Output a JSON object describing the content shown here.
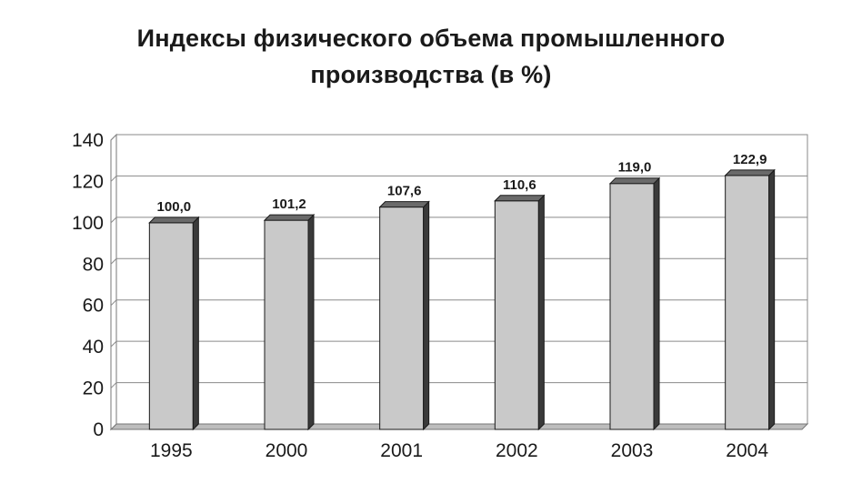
{
  "chart_data": {
    "type": "bar",
    "title_lines": [
      "Индексы физического объема промышленного",
      "производства (в %)"
    ],
    "categories": [
      "1995",
      "2000",
      "2001",
      "2002",
      "2003",
      "2004"
    ],
    "values": [
      100.0,
      101.2,
      107.6,
      110.6,
      119.0,
      122.9
    ],
    "value_labels": [
      "100,0",
      "101,2",
      "107,6",
      "110,6",
      "119,0",
      "122,9"
    ],
    "y_ticks": [
      "0",
      "20",
      "40",
      "60",
      "80",
      "100",
      "120",
      "140"
    ],
    "ylim": [
      0,
      140
    ],
    "grid": true,
    "legend": "none",
    "colors": {
      "bar_face": "#c9c9c9",
      "bar_side": "#3a3a3a",
      "bar_top": "#6a6a6a",
      "grid": "#8a8a8a",
      "floor": "#bdbdbd"
    }
  }
}
